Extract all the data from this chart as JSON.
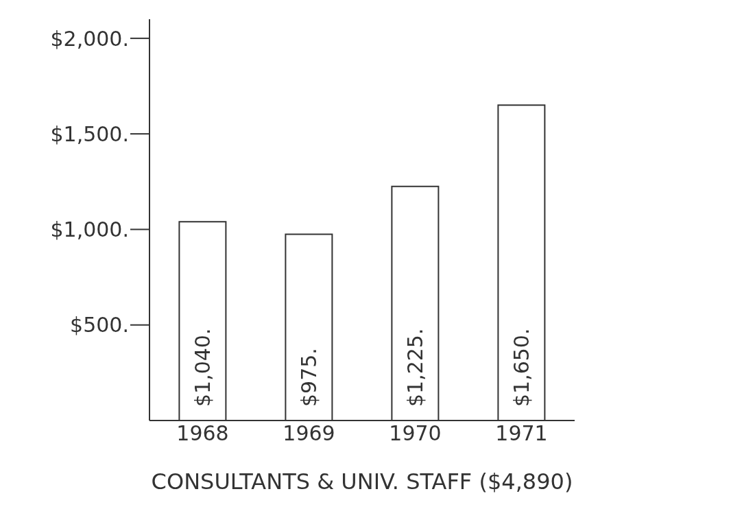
{
  "chart_data": {
    "type": "bar",
    "xlabel": "CONSULTANTS & UNIV. STAFF ($4,890)",
    "categories": [
      "1968",
      "1969",
      "1970",
      "1971"
    ],
    "values": [
      1040,
      975,
      1225,
      1650
    ],
    "value_labels": [
      "$1,040.",
      "$975.",
      "$1,225.",
      "$1,650."
    ],
    "color": "#ffffff",
    "ylim": [
      0,
      2100
    ],
    "yticks": [
      {
        "value": 500,
        "label": "$500."
      },
      {
        "value": 1000,
        "label": "$1,000."
      },
      {
        "value": 1500,
        "label": "$1,500."
      },
      {
        "value": 2000,
        "label": "$2,000."
      }
    ],
    "grid": false,
    "legend": false
  }
}
